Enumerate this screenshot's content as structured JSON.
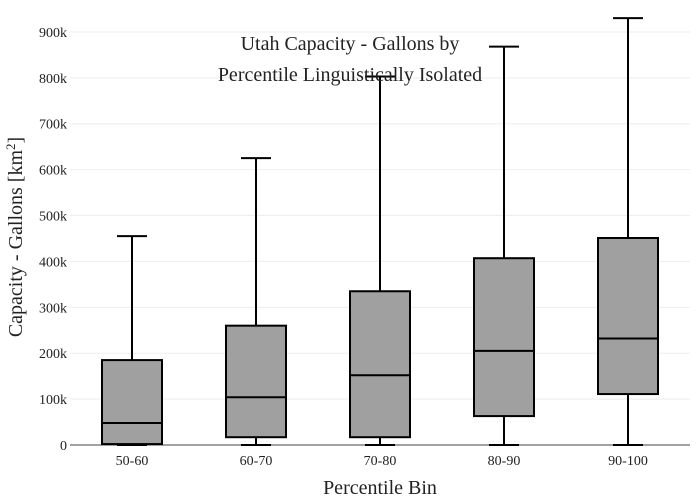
{
  "chart_data": {
    "type": "box",
    "title_lines": [
      "Utah Capacity - Gallons by",
      "Percentile Linguistically Isolated"
    ],
    "xlabel": "Percentile Bin",
    "ylabel_main": "Capacity - Gallons  [km",
    "ylabel_sup": "2",
    "ylabel_end": "]",
    "ylim": [
      0,
      950000
    ],
    "yticks": [
      0,
      100000,
      200000,
      300000,
      400000,
      500000,
      600000,
      700000,
      800000,
      900000
    ],
    "ytick_labels": [
      "0",
      "100k",
      "200k",
      "300k",
      "400k",
      "500k",
      "600k",
      "700k",
      "800k",
      "900k"
    ],
    "grid": true,
    "categories": [
      "50-60",
      "60-70",
      "70-80",
      "80-90",
      "90-100"
    ],
    "boxes": [
      {
        "min": 0,
        "q1": 2000,
        "median": 48000,
        "q3": 185000,
        "max": 455000
      },
      {
        "min": 0,
        "q1": 17000,
        "median": 104000,
        "q3": 260000,
        "max": 625000
      },
      {
        "min": 0,
        "q1": 17000,
        "median": 152000,
        "q3": 335000,
        "max": 803000
      },
      {
        "min": 0,
        "q1": 63000,
        "median": 205000,
        "q3": 407000,
        "max": 868000
      },
      {
        "min": 0,
        "q1": 111000,
        "median": 232000,
        "q3": 451000,
        "max": 930000
      }
    ],
    "box_color": "#a0a0a0",
    "line_color": "#000000"
  }
}
